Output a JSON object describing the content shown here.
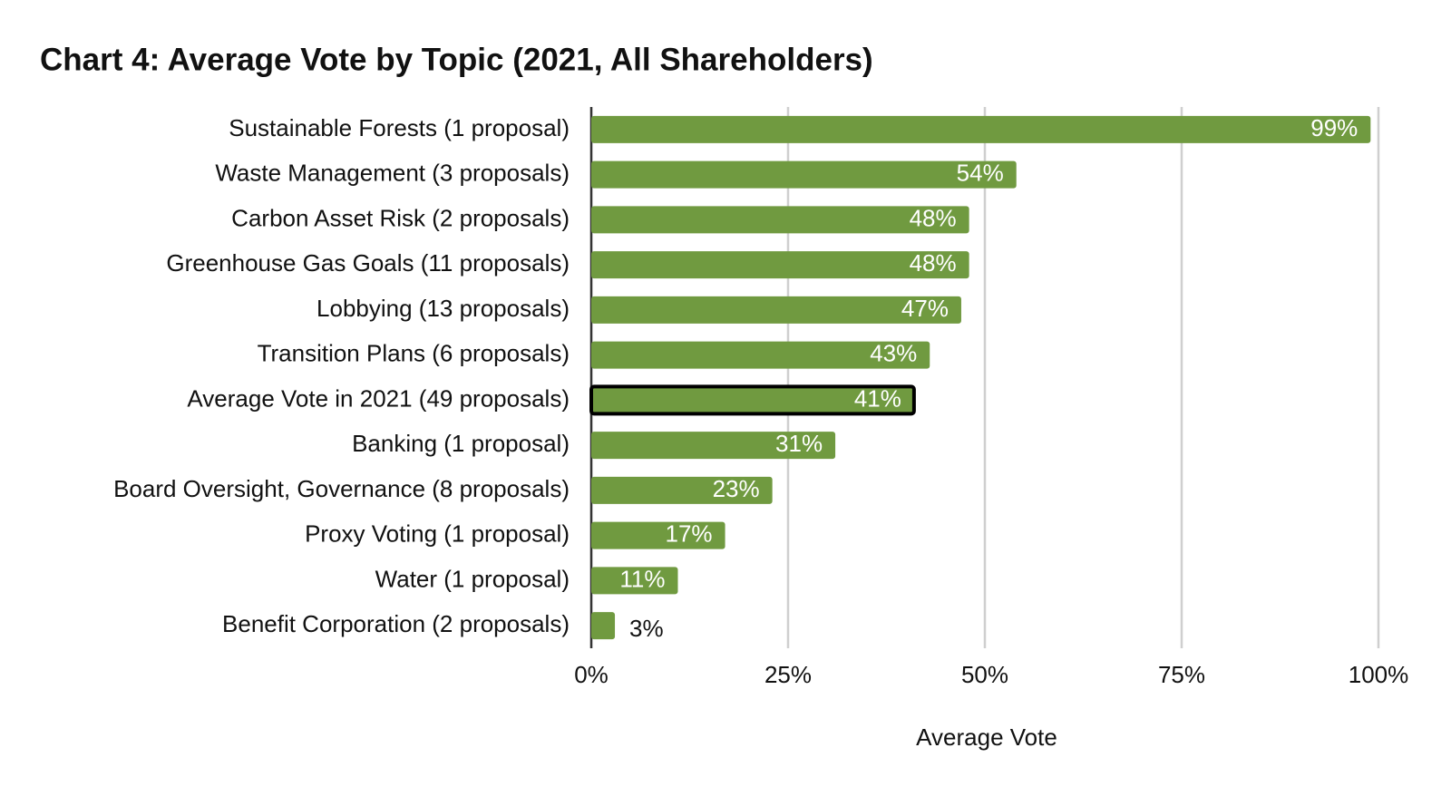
{
  "chart_data": {
    "type": "bar",
    "orientation": "horizontal",
    "title": "Chart 4: Average Vote by Topic (2021, All Shareholders)",
    "categories": [
      "Sustainable Forests (1 proposal)",
      "Waste Management (3 proposals)",
      "Carbon Asset Risk (2 proposals)",
      "Greenhouse Gas Goals (11 proposals)",
      "Lobbying (13 proposals)",
      "Transition Plans (6 proposals)",
      "Average Vote in 2021 (49 proposals)",
      "Banking (1 proposal)",
      "Board Oversight, Governance (8 proposals)",
      "Proxy Voting (1 proposal)",
      "Water (1 proposal)",
      "Benefit Corporation (2 proposals)"
    ],
    "values": [
      99,
      54,
      48,
      48,
      47,
      43,
      41,
      31,
      23,
      17,
      11,
      3
    ],
    "value_labels": [
      "99%",
      "54%",
      "48%",
      "48%",
      "47%",
      "43%",
      "41%",
      "31%",
      "23%",
      "17%",
      "11%",
      "3%"
    ],
    "color": "#709a40",
    "outline_index": 6,
    "xlabel": "Average Vote",
    "xlim": [
      0,
      100
    ],
    "xticks": [
      {
        "value": 0,
        "label": "0%"
      },
      {
        "value": 25,
        "label": "25%"
      },
      {
        "value": 50,
        "label": "50%"
      },
      {
        "value": 75,
        "label": "75%"
      },
      {
        "value": 100,
        "label": "100%"
      }
    ],
    "grid": true
  }
}
